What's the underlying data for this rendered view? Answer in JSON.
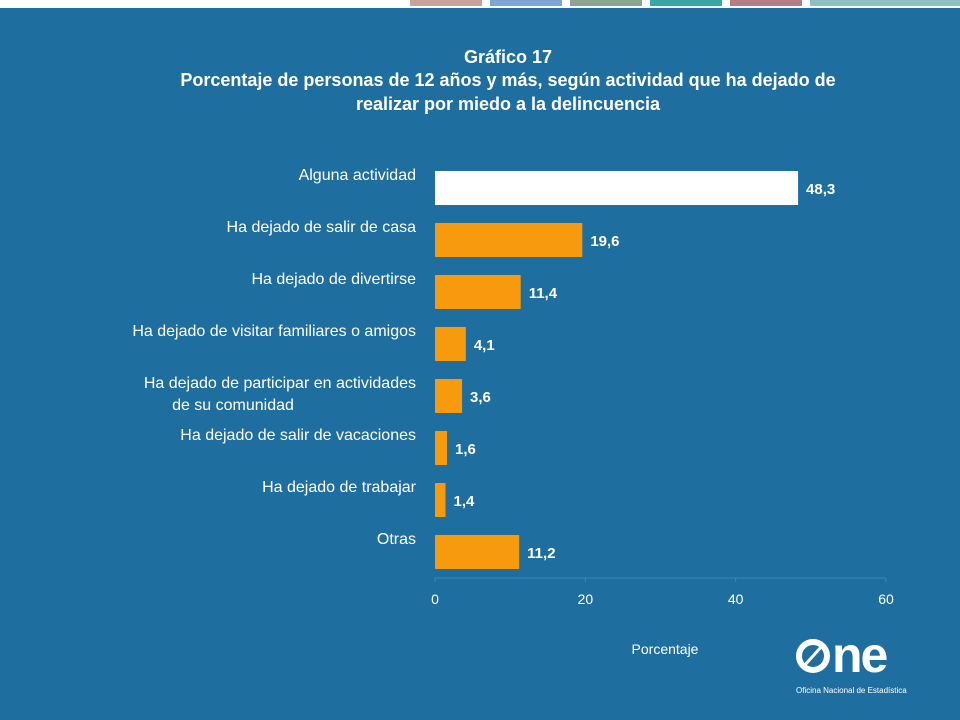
{
  "title": "Gráfico 17",
  "subtitle": "Porcentaje de personas de 12 años y más, según actividad que ha dejado de realizar por miedo a la delincuencia",
  "colors": {
    "background": "#1f6ea0",
    "highlight_bar": "#ffffff",
    "bar": "#f79a0e",
    "text": "#ffffff",
    "top_band": [
      "#c9a39a",
      "#7fa3d4",
      "#8aa592",
      "#3aa6a6",
      "#b57d85",
      "#8fc0c4"
    ]
  },
  "chart_data": {
    "type": "bar",
    "orientation": "horizontal",
    "categories": [
      "Alguna actividad",
      "Ha dejado de salir de casa",
      "Ha dejado de divertirse",
      "Ha dejado de visitar familiares o amigos",
      "Ha dejado de participar en actividades de su comunidad",
      "Ha dejado de salir de vacaciones",
      "Ha dejado de trabajar",
      "Otras"
    ],
    "values": [
      48.3,
      19.6,
      11.4,
      4.1,
      3.6,
      1.6,
      1.4,
      11.2
    ],
    "value_labels": [
      "48,3",
      "19,6",
      "11,4",
      "4,1",
      "3,6",
      "1,6",
      "1,4",
      "11,2"
    ],
    "xlim": [
      0,
      60
    ],
    "xticks": [
      0,
      20,
      40,
      60
    ],
    "xlabel": "Porcentaje",
    "ylabel": "",
    "grid": false,
    "legend": "none"
  },
  "logo": {
    "word": "ne",
    "caption": "Oficina Nacional de Estadística"
  }
}
